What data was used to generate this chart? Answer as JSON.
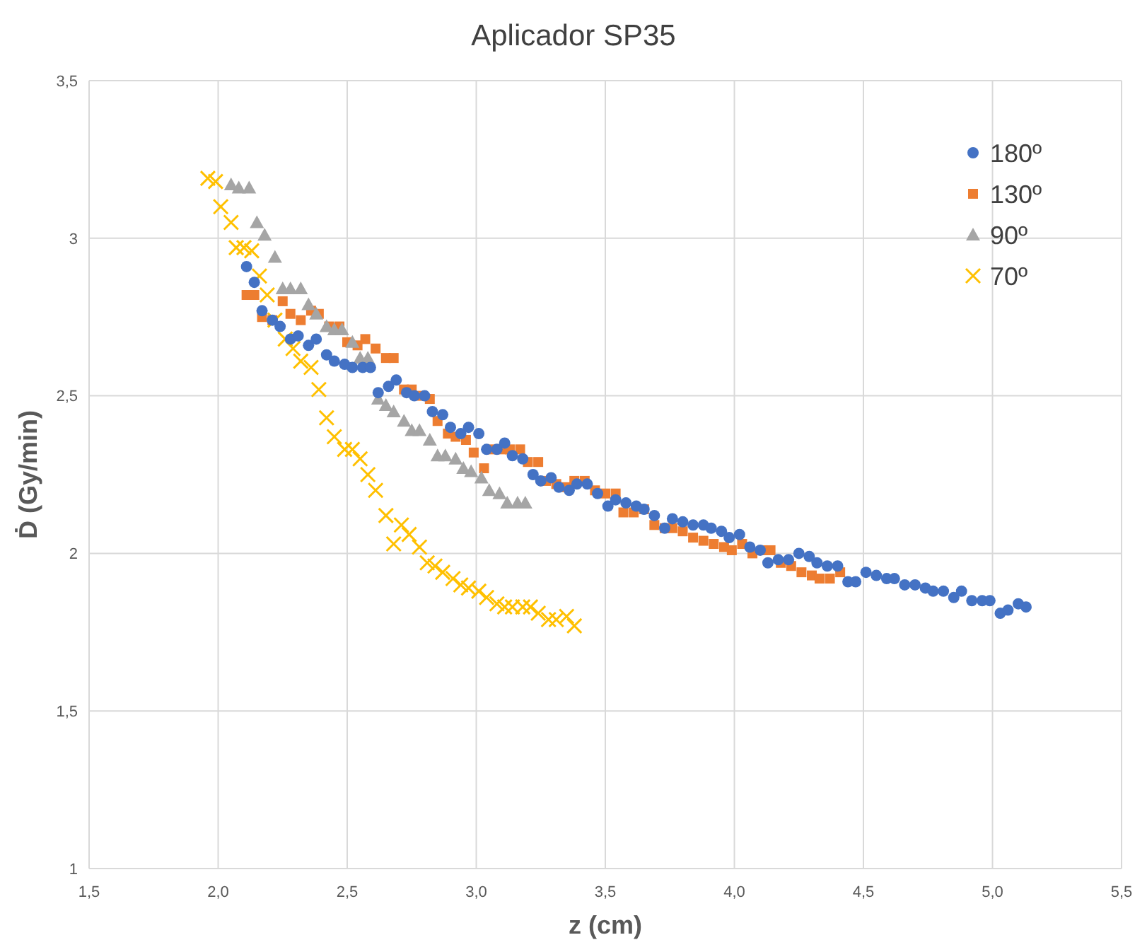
{
  "chart_data": {
    "type": "scatter",
    "title": "Aplicador SP35",
    "xlabel": "z (cm)",
    "ylabel": "Ḋ (Gy/min)",
    "xlim": [
      1.5,
      5.5
    ],
    "ylim": [
      1,
      3.5
    ],
    "xticks": [
      {
        "value": 1.5,
        "label": "1,5"
      },
      {
        "value": 2,
        "label": "2,0"
      },
      {
        "value": 2.5,
        "label": "2,5"
      },
      {
        "value": 3,
        "label": "3,0"
      },
      {
        "value": 3.5,
        "label": "3,5"
      },
      {
        "value": 4,
        "label": "4,0"
      },
      {
        "value": 4.5,
        "label": "4,5"
      },
      {
        "value": 5,
        "label": "5,0"
      },
      {
        "value": 5.5,
        "label": "5,5"
      }
    ],
    "yticks": [
      1,
      {
        "value": 1.5,
        "label": "1,5"
      },
      2,
      {
        "value": 2.5,
        "label": "2,5"
      },
      3,
      {
        "value": 3.5,
        "label": "3,5"
      }
    ],
    "grid": true,
    "legend": "top right",
    "series": [
      {
        "name": "180º",
        "color": "#4472c4",
        "marker": "circle",
        "x": [
          2.11,
          2.14,
          2.17,
          2.21,
          2.24,
          2.28,
          2.31,
          2.35,
          2.38,
          2.42,
          2.45,
          2.49,
          2.52,
          2.56,
          2.59,
          2.62,
          2.66,
          2.69,
          2.73,
          2.76,
          2.8,
          2.83,
          2.87,
          2.9,
          2.94,
          2.97,
          3.01,
          3.04,
          3.08,
          3.11,
          3.14,
          3.18,
          3.22,
          3.25,
          3.29,
          3.32,
          3.36,
          3.39,
          3.43,
          3.47,
          3.51,
          3.54,
          3.58,
          3.62,
          3.65,
          3.69,
          3.73,
          3.76,
          3.8,
          3.84,
          3.88,
          3.91,
          3.95,
          3.98,
          4.02,
          4.06,
          4.1,
          4.13,
          4.17,
          4.21,
          4.25,
          4.29,
          4.32,
          4.36,
          4.4,
          4.44,
          4.47,
          4.51,
          4.55,
          4.59,
          4.62,
          4.66,
          4.7,
          4.74,
          4.77,
          4.81,
          4.85,
          4.88,
          4.92,
          4.96,
          4.99,
          5.03,
          5.06,
          5.1,
          5.13
        ],
        "values": [
          2.91,
          2.86,
          2.77,
          2.74,
          2.72,
          2.68,
          2.69,
          2.66,
          2.68,
          2.63,
          2.61,
          2.6,
          2.59,
          2.59,
          2.59,
          2.51,
          2.53,
          2.55,
          2.51,
          2.5,
          2.5,
          2.45,
          2.44,
          2.4,
          2.38,
          2.4,
          2.38,
          2.33,
          2.33,
          2.35,
          2.31,
          2.3,
          2.25,
          2.23,
          2.24,
          2.21,
          2.2,
          2.22,
          2.22,
          2.19,
          2.15,
          2.17,
          2.16,
          2.15,
          2.14,
          2.12,
          2.08,
          2.11,
          2.1,
          2.09,
          2.09,
          2.08,
          2.07,
          2.05,
          2.06,
          2.02,
          2.01,
          1.97,
          1.98,
          1.98,
          2,
          1.99,
          1.97,
          1.96,
          1.96,
          1.91,
          1.91,
          1.94,
          1.93,
          1.92,
          1.92,
          1.9,
          1.9,
          1.89,
          1.88,
          1.88,
          1.86,
          1.88,
          1.85,
          1.85,
          1.85,
          1.81,
          1.82,
          1.84,
          1.83
        ]
      },
      {
        "name": "130º",
        "color": "#ed7d31",
        "marker": "square",
        "x": [
          2.11,
          2.14,
          2.17,
          2.21,
          2.25,
          2.28,
          2.32,
          2.36,
          2.39,
          2.43,
          2.47,
          2.5,
          2.54,
          2.57,
          2.61,
          2.65,
          2.68,
          2.72,
          2.75,
          2.79,
          2.82,
          2.85,
          2.89,
          2.92,
          2.96,
          2.99,
          3.03,
          3.06,
          3.1,
          3.13,
          3.17,
          3.2,
          3.24,
          3.27,
          3.31,
          3.35,
          3.38,
          3.42,
          3.46,
          3.5,
          3.54,
          3.57,
          3.61,
          3.65,
          3.69,
          3.73,
          3.76,
          3.8,
          3.84,
          3.88,
          3.92,
          3.96,
          3.99,
          4.03,
          4.07,
          4.11,
          4.14,
          4.18,
          4.22,
          4.26,
          4.3,
          4.33,
          4.37,
          4.41
        ],
        "values": [
          2.82,
          2.82,
          2.75,
          2.74,
          2.8,
          2.76,
          2.74,
          2.77,
          2.76,
          2.72,
          2.72,
          2.67,
          2.66,
          2.68,
          2.65,
          2.62,
          2.62,
          2.52,
          2.52,
          2.5,
          2.49,
          2.42,
          2.38,
          2.37,
          2.36,
          2.32,
          2.27,
          2.33,
          2.33,
          2.33,
          2.33,
          2.29,
          2.29,
          2.23,
          2.22,
          2.21,
          2.23,
          2.23,
          2.2,
          2.19,
          2.19,
          2.13,
          2.13,
          2.14,
          2.09,
          2.08,
          2.08,
          2.07,
          2.05,
          2.04,
          2.03,
          2.02,
          2.01,
          2.03,
          2,
          2.01,
          2.01,
          1.97,
          1.96,
          1.94,
          1.93,
          1.92,
          1.92,
          1.94
        ]
      },
      {
        "name": "90º",
        "color": "#a5a5a5",
        "marker": "triangle",
        "x": [
          2.05,
          2.08,
          2.12,
          2.15,
          2.18,
          2.22,
          2.25,
          2.28,
          2.32,
          2.35,
          2.38,
          2.42,
          2.45,
          2.48,
          2.52,
          2.55,
          2.58,
          2.62,
          2.65,
          2.68,
          2.72,
          2.75,
          2.78,
          2.82,
          2.85,
          2.88,
          2.92,
          2.95,
          2.98,
          3.02,
          3.05,
          3.09,
          3.12,
          3.16,
          3.19
        ],
        "values": [
          3.17,
          3.16,
          3.16,
          3.05,
          3.01,
          2.94,
          2.84,
          2.84,
          2.84,
          2.79,
          2.76,
          2.72,
          2.71,
          2.71,
          2.67,
          2.62,
          2.62,
          2.49,
          2.47,
          2.45,
          2.42,
          2.39,
          2.39,
          2.36,
          2.31,
          2.31,
          2.3,
          2.27,
          2.26,
          2.24,
          2.2,
          2.19,
          2.16,
          2.16,
          2.16
        ]
      },
      {
        "name": "70º",
        "color": "#ffc000",
        "marker": "cross",
        "x": [
          1.96,
          1.99,
          2.01,
          2.05,
          2.07,
          2.1,
          2.13,
          2.16,
          2.19,
          2.22,
          2.26,
          2.29,
          2.32,
          2.36,
          2.39,
          2.42,
          2.45,
          2.49,
          2.52,
          2.55,
          2.58,
          2.61,
          2.65,
          2.68,
          2.71,
          2.74,
          2.78,
          2.81,
          2.84,
          2.87,
          2.91,
          2.94,
          2.97,
          3.01,
          3.04,
          3.08,
          3.11,
          3.14,
          3.18,
          3.21,
          3.24,
          3.28,
          3.31,
          3.35,
          3.38
        ],
        "values": [
          3.19,
          3.18,
          3.1,
          3.05,
          2.97,
          2.97,
          2.96,
          2.88,
          2.82,
          2.74,
          2.68,
          2.65,
          2.61,
          2.59,
          2.52,
          2.43,
          2.37,
          2.33,
          2.33,
          2.3,
          2.25,
          2.2,
          2.12,
          2.03,
          2.09,
          2.06,
          2.02,
          1.97,
          1.96,
          1.94,
          1.92,
          1.9,
          1.89,
          1.88,
          1.86,
          1.84,
          1.83,
          1.83,
          1.83,
          1.83,
          1.81,
          1.79,
          1.79,
          1.8,
          1.77
        ]
      }
    ]
  }
}
